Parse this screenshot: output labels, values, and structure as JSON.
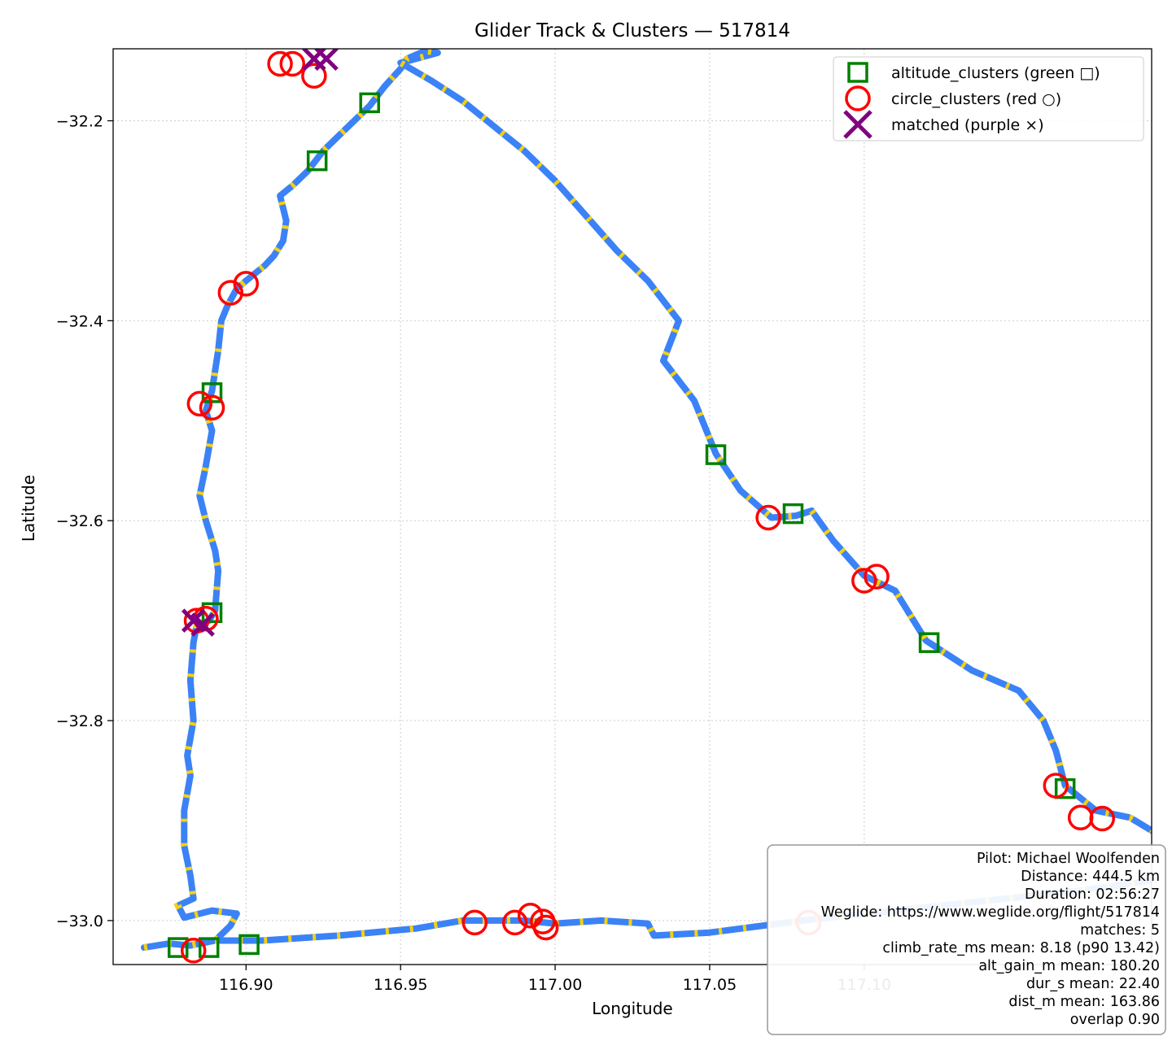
{
  "chart_data": {
    "type": "scatter",
    "title": "Glider Track & Clusters — 517814",
    "xlabel": "Longitude",
    "ylabel": "Latitude",
    "xlim": [
      116.857,
      117.193
    ],
    "ylim": [
      -33.044,
      -32.128
    ],
    "x_ticks": [
      116.9,
      116.95,
      117.0,
      117.05,
      117.1
    ],
    "x_tick_labels": [
      "116.90",
      "116.95",
      "117.00",
      "117.05",
      "117.10"
    ],
    "y_ticks": [
      -32.2,
      -32.4,
      -32.6,
      -32.8,
      -33.0
    ],
    "y_tick_labels": [
      "−32.2",
      "−32.4",
      "−32.6",
      "−32.8",
      "−33.0"
    ],
    "grid": true,
    "legend_position": "top-right",
    "colors": {
      "track": "#3b82f6",
      "track_highlight": "#f5d00f",
      "altitude": "#008000",
      "circle": "#ff0000",
      "matched": "#800080"
    },
    "series": [
      {
        "name": "track",
        "points": [
          [
            116.867,
            -33.027
          ],
          [
            116.875,
            -33.023
          ],
          [
            116.882,
            -33.025
          ],
          [
            116.89,
            -33.02
          ],
          [
            116.895,
            -33.005
          ],
          [
            116.897,
            -32.993
          ],
          [
            116.889,
            -32.99
          ],
          [
            116.88,
            -32.997
          ],
          [
            116.878,
            -32.985
          ],
          [
            116.883,
            -32.978
          ],
          [
            116.882,
            -32.955
          ],
          [
            116.88,
            -32.925
          ],
          [
            116.88,
            -32.89
          ],
          [
            116.882,
            -32.855
          ],
          [
            116.881,
            -32.835
          ],
          [
            116.883,
            -32.8
          ],
          [
            116.882,
            -32.76
          ],
          [
            116.883,
            -32.722
          ],
          [
            116.884,
            -32.705
          ],
          [
            116.888,
            -32.7
          ],
          [
            116.89,
            -32.69
          ],
          [
            116.891,
            -32.65
          ],
          [
            116.89,
            -32.63
          ],
          [
            116.887,
            -32.6
          ],
          [
            116.885,
            -32.575
          ],
          [
            116.887,
            -32.545
          ],
          [
            116.889,
            -32.51
          ],
          [
            116.887,
            -32.49
          ],
          [
            116.889,
            -32.47
          ],
          [
            116.891,
            -32.43
          ],
          [
            116.892,
            -32.4
          ],
          [
            116.894,
            -32.385
          ],
          [
            116.897,
            -32.368
          ],
          [
            116.9,
            -32.36
          ],
          [
            116.906,
            -32.345
          ],
          [
            116.909,
            -32.335
          ],
          [
            116.912,
            -32.32
          ],
          [
            116.913,
            -32.3
          ],
          [
            116.911,
            -32.275
          ],
          [
            116.915,
            -32.265
          ],
          [
            116.92,
            -32.25
          ],
          [
            116.925,
            -32.23
          ],
          [
            116.93,
            -32.215
          ],
          [
            116.935,
            -32.2
          ],
          [
            116.94,
            -32.185
          ],
          [
            116.945,
            -32.165
          ],
          [
            116.95,
            -32.148
          ],
          [
            116.952,
            -32.138
          ],
          [
            116.958,
            -32.13
          ],
          [
            116.962,
            -32.132
          ],
          [
            116.955,
            -32.138
          ],
          [
            116.95,
            -32.142
          ],
          [
            116.96,
            -32.16
          ],
          [
            116.97,
            -32.18
          ],
          [
            116.98,
            -32.205
          ],
          [
            116.99,
            -32.23
          ],
          [
            117.0,
            -32.26
          ],
          [
            117.01,
            -32.295
          ],
          [
            117.02,
            -32.33
          ],
          [
            117.03,
            -32.36
          ],
          [
            117.04,
            -32.4
          ],
          [
            117.035,
            -32.44
          ],
          [
            117.045,
            -32.48
          ],
          [
            117.052,
            -32.533
          ],
          [
            117.06,
            -32.57
          ],
          [
            117.07,
            -32.597
          ],
          [
            117.078,
            -32.595
          ],
          [
            117.083,
            -32.59
          ],
          [
            117.09,
            -32.62
          ],
          [
            117.1,
            -32.655
          ],
          [
            117.11,
            -32.67
          ],
          [
            117.12,
            -32.72
          ],
          [
            117.135,
            -32.75
          ],
          [
            117.15,
            -32.77
          ],
          [
            117.158,
            -32.8
          ],
          [
            117.162,
            -32.83
          ],
          [
            117.165,
            -32.865
          ],
          [
            117.175,
            -32.89
          ],
          [
            117.186,
            -32.897
          ],
          [
            117.193,
            -32.91
          ]
        ]
      },
      {
        "name": "track-bottom",
        "points": [
          [
            116.89,
            -33.02
          ],
          [
            116.905,
            -33.02
          ],
          [
            116.93,
            -33.015
          ],
          [
            116.955,
            -33.008
          ],
          [
            116.97,
            -33.0
          ],
          [
            116.99,
            -33.0
          ],
          [
            117.0,
            -33.003
          ],
          [
            117.015,
            -33.0
          ],
          [
            117.03,
            -33.003
          ],
          [
            117.032,
            -33.015
          ],
          [
            117.05,
            -33.012
          ],
          [
            117.08,
            -33.0
          ],
          [
            117.11,
            -32.99
          ],
          [
            117.14,
            -32.98
          ],
          [
            117.17,
            -32.97
          ],
          [
            117.193,
            -32.96
          ]
        ]
      },
      {
        "name": "altitude_clusters (green □)",
        "points": [
          [
            116.94,
            -32.182
          ],
          [
            116.923,
            -32.24
          ],
          [
            116.889,
            -32.472
          ],
          [
            116.889,
            -32.692
          ],
          [
            116.878,
            -33.027
          ],
          [
            116.888,
            -33.027
          ],
          [
            116.901,
            -33.024
          ],
          [
            117.052,
            -32.534
          ],
          [
            117.077,
            -32.593
          ],
          [
            117.121,
            -32.722
          ],
          [
            117.165,
            -32.868
          ]
        ]
      },
      {
        "name": "circle_clusters (red ○)",
        "points": [
          [
            116.922,
            -32.155
          ],
          [
            116.911,
            -32.143
          ],
          [
            116.915,
            -32.143
          ],
          [
            116.9,
            -32.363
          ],
          [
            116.895,
            -32.372
          ],
          [
            116.889,
            -32.487
          ],
          [
            116.885,
            -32.483
          ],
          [
            116.884,
            -32.7
          ],
          [
            116.887,
            -32.698
          ],
          [
            116.883,
            -33.03
          ],
          [
            116.974,
            -33.002
          ],
          [
            116.987,
            -33.002
          ],
          [
            116.992,
            -32.995
          ],
          [
            116.997,
            -33.007
          ],
          [
            116.996,
            -33.001
          ],
          [
            117.069,
            -32.597
          ],
          [
            117.1,
            -32.66
          ],
          [
            117.104,
            -32.656
          ],
          [
            117.162,
            -32.865
          ],
          [
            117.17,
            -32.897
          ],
          [
            117.177,
            -32.898
          ],
          [
            117.082,
            -33.002
          ]
        ]
      },
      {
        "name": "matched (purple ×)",
        "points": [
          [
            116.922,
            -32.138
          ],
          [
            116.926,
            -32.138
          ],
          [
            116.883,
            -32.7
          ],
          [
            116.886,
            -32.704
          ]
        ]
      }
    ],
    "legend": [
      {
        "label": "altitude_clusters (green □)",
        "marker": "square"
      },
      {
        "label": "circle_clusters (red ○)",
        "marker": "circle"
      },
      {
        "label": "matched (purple ×)",
        "marker": "x"
      }
    ],
    "annotation": [
      "Pilot: Michael Woolfenden",
      "Distance: 444.5 km",
      "Duration: 02:56:27",
      "Weglide: https://www.weglide.org/flight/517814",
      "matches: 5",
      "climb_rate_ms mean: 8.18 (p90 13.42)",
      "alt_gain_m mean: 180.20",
      "dur_s mean: 22.40",
      "dist_m mean: 163.86",
      "overlap 0.90"
    ]
  }
}
